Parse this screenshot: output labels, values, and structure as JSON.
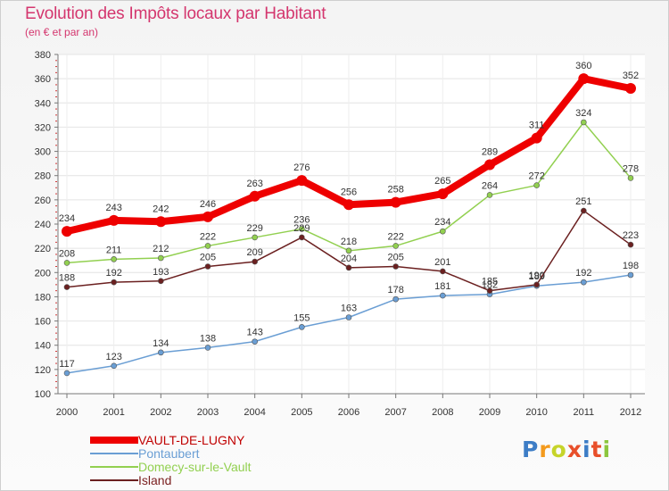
{
  "chart_data": {
    "type": "line",
    "title": "Evolution des Impôts locaux par Habitant",
    "subtitle": "(en € et par an)",
    "categories": [
      "2000",
      "2001",
      "2002",
      "2003",
      "2004",
      "2005",
      "2006",
      "2007",
      "2008",
      "2009",
      "2010",
      "2011",
      "2012"
    ],
    "ylim": [
      100,
      380
    ],
    "yticks": [
      "100",
      "120",
      "140",
      "160",
      "180",
      "200",
      "220",
      "240",
      "260",
      "280",
      "300",
      "320",
      "340",
      "360",
      "380"
    ],
    "grid": "horizontal",
    "legend_position": "bottom-left",
    "series": [
      {
        "name": "VAULT-DE-LUGNY",
        "color": "#ee0000",
        "values": [
          234,
          243,
          242,
          246,
          263,
          276,
          256,
          258,
          265,
          289,
          311,
          360,
          352
        ]
      },
      {
        "name": "Pontaubert",
        "color": "#6a9ed4",
        "values": [
          117,
          123,
          134,
          138,
          143,
          155,
          163,
          178,
          181,
          182,
          189,
          192,
          198
        ]
      },
      {
        "name": "Domecy-sur-le-Vault",
        "color": "#92d050",
        "values": [
          208,
          211,
          212,
          222,
          229,
          236,
          218,
          222,
          234,
          264,
          272,
          324,
          278
        ]
      },
      {
        "name": "Island",
        "color": "#6b2020",
        "values": [
          188,
          192,
          193,
          205,
          209,
          229,
          204,
          205,
          201,
          185,
          190,
          251,
          223
        ]
      }
    ]
  },
  "logo": {
    "letters": [
      "P",
      "r",
      "o",
      "x",
      "i",
      "t",
      "i"
    ]
  }
}
